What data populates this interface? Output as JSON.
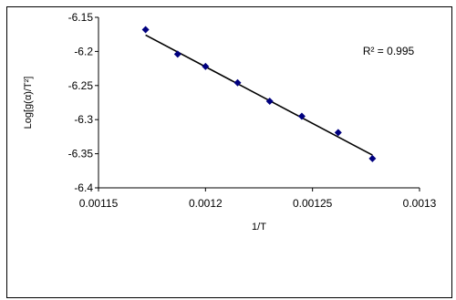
{
  "chart_data": {
    "type": "scatter",
    "title": "",
    "xlabel": "1/T",
    "ylabel": "Log[g(α)/T²]",
    "xlim": [
      0.00115,
      0.0013
    ],
    "ylim": [
      -6.4,
      -6.15
    ],
    "xticks": [
      0.00115,
      0.0012,
      0.00125,
      0.0013
    ],
    "xtick_labels": [
      "0.00115",
      "0.0012",
      "0.00125",
      "0.0013"
    ],
    "yticks": [
      -6.15,
      -6.2,
      -6.25,
      -6.3,
      -6.35,
      -6.4
    ],
    "ytick_labels": [
      "-6.15",
      "-6.2",
      "-6.25",
      "-6.3",
      "-6.35",
      "-6.4"
    ],
    "grid": false,
    "series": [
      {
        "x": [
          0.001172,
          0.001187,
          0.0012,
          0.001215,
          0.00123,
          0.001245,
          0.001262,
          0.001278
        ],
        "y": [
          -6.168,
          -6.204,
          -6.222,
          -6.246,
          -6.273,
          -6.295,
          -6.319,
          -6.357
        ],
        "color": "#00007f"
      }
    ],
    "trendline": {
      "x": [
        0.001172,
        0.001278
      ],
      "y": [
        -6.176,
        -6.352
      ],
      "color": "#000000"
    },
    "annotations": [
      {
        "text": "R² = 0.995"
      }
    ]
  }
}
